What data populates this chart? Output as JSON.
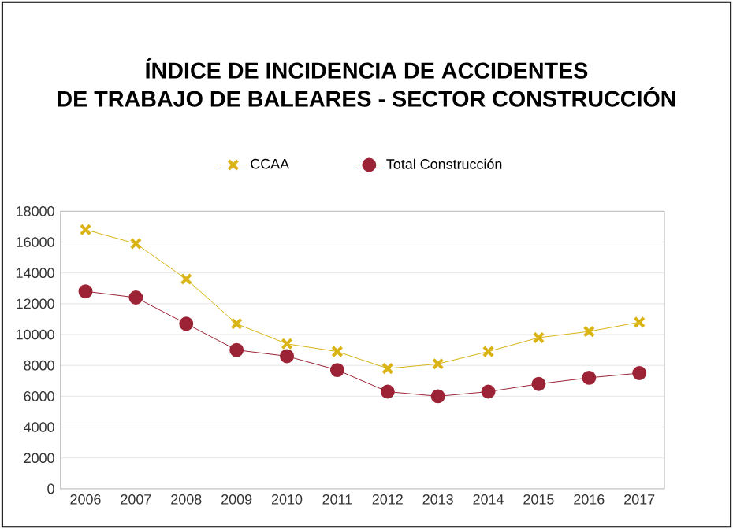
{
  "chart_data": {
    "type": "line",
    "title": "ÍNDICE DE INCIDENCIA DE ACCIDENTES\nDE TRABAJO DE BALEARES  - SECTOR CONSTRUCCIÓN",
    "categories": [
      "2006",
      "2007",
      "2008",
      "2009",
      "2010",
      "2011",
      "2012",
      "2013",
      "2014",
      "2015",
      "2016",
      "2017"
    ],
    "series": [
      {
        "name": "CCAA",
        "color": "#d9b414",
        "marker": "cross",
        "values": [
          16800,
          15900,
          13600,
          10700,
          9400,
          8900,
          7800,
          8100,
          8900,
          9800,
          10200,
          10800
        ]
      },
      {
        "name": "Total Construcción",
        "color": "#9b2335",
        "marker": "circle",
        "values": [
          12800,
          12400,
          10700,
          9000,
          8600,
          7700,
          6300,
          6000,
          6300,
          6800,
          7200,
          7500
        ]
      }
    ],
    "ylim": [
      0,
      18000
    ],
    "yticks": [
      0,
      2000,
      4000,
      6000,
      8000,
      10000,
      12000,
      14000,
      16000,
      18000
    ],
    "grid": "y",
    "legend": "top"
  }
}
